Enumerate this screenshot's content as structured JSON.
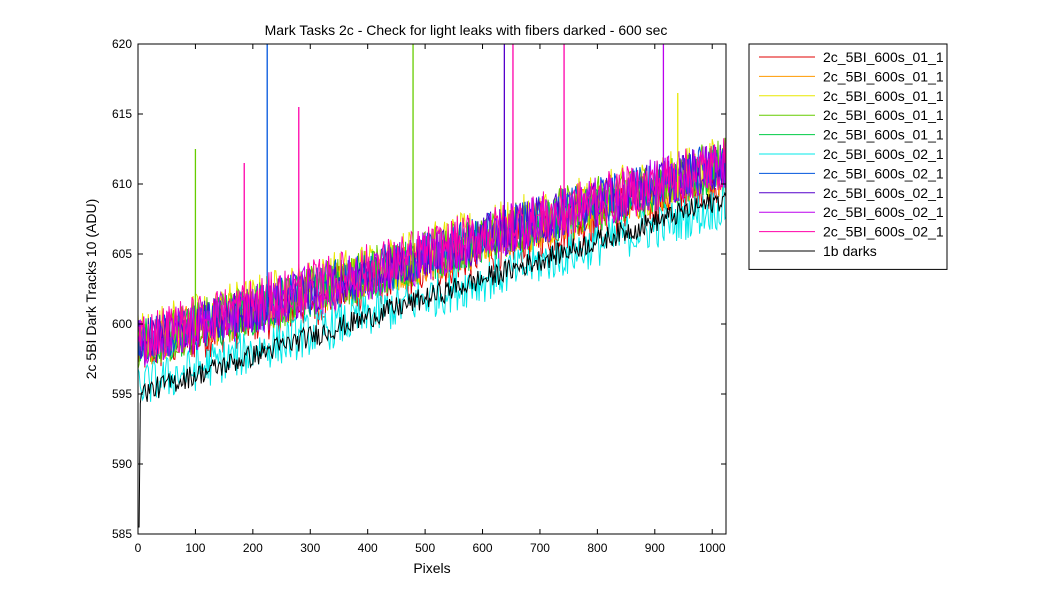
{
  "chart_data": {
    "type": "line",
    "title": "Mark Tasks 2c - Check for light leaks with fibers darked - 600 sec",
    "xlabel": "Pixels",
    "ylabel": "2c 5BI Dark Tracks 10 (ADU)",
    "xlim": [
      0,
      1024
    ],
    "ylim": [
      585,
      620
    ],
    "xticks": [
      0,
      100,
      200,
      300,
      400,
      500,
      600,
      700,
      800,
      900,
      1000
    ],
    "yticks": [
      585,
      590,
      595,
      600,
      605,
      610,
      615,
      620
    ],
    "legend_position": "outside-right-top",
    "series": [
      {
        "name": "2c_5BI_600s_01_1",
        "color": "#e00000",
        "start": 598.0,
        "end": 610.5,
        "noise": 1.2
      },
      {
        "name": "2c_5BI_600s_01_1",
        "color": "#ff9900",
        "start": 598.5,
        "end": 611.0,
        "noise": 1.1
      },
      {
        "name": "2c_5BI_600s_01_1",
        "color": "#e8e800",
        "start": 599.0,
        "end": 611.5,
        "noise": 1.3
      },
      {
        "name": "2c_5BI_600s_01_1",
        "color": "#66cc00",
        "start": 598.5,
        "end": 611.5,
        "noise": 1.2
      },
      {
        "name": "2c_5BI_600s_01_1",
        "color": "#00cc44",
        "start": 598.5,
        "end": 611.0,
        "noise": 1.1
      },
      {
        "name": "2c_5BI_600s_02_1",
        "color": "#00e8e8",
        "start": 595.5,
        "end": 608.5,
        "noise": 1.0
      },
      {
        "name": "2c_5BI_600s_02_1",
        "color": "#0055dd",
        "start": 598.5,
        "end": 611.5,
        "noise": 1.1
      },
      {
        "name": "2c_5BI_600s_02_1",
        "color": "#5500cc",
        "start": 598.5,
        "end": 611.5,
        "noise": 1.1
      },
      {
        "name": "2c_5BI_600s_02_1",
        "color": "#bb00ee",
        "start": 598.5,
        "end": 611.5,
        "noise": 1.2
      },
      {
        "name": "2c_5BI_600s_02_1",
        "color": "#ff00aa",
        "start": 599.0,
        "end": 611.5,
        "noise": 1.2
      },
      {
        "name": "1b darks",
        "color": "#000000",
        "start": 595.0,
        "end": 609.0,
        "noise": 0.5
      }
    ],
    "spikes": [
      {
        "x": 225,
        "y": 620,
        "color": "#0055dd"
      },
      {
        "x": 479,
        "y": 620,
        "color": "#66cc00"
      },
      {
        "x": 638,
        "y": 620,
        "color": "#5500cc"
      },
      {
        "x": 653,
        "y": 620,
        "color": "#ff00aa"
      },
      {
        "x": 742,
        "y": 620,
        "color": "#ff00aa"
      },
      {
        "x": 915,
        "y": 620,
        "color": "#bb00ee"
      },
      {
        "x": 280,
        "y": 615.5,
        "color": "#ff00aa"
      },
      {
        "x": 100,
        "y": 612.5,
        "color": "#66cc00"
      },
      {
        "x": 185,
        "y": 611.5,
        "color": "#ff00aa"
      },
      {
        "x": 940,
        "y": 616.5,
        "color": "#e8e800"
      }
    ]
  }
}
